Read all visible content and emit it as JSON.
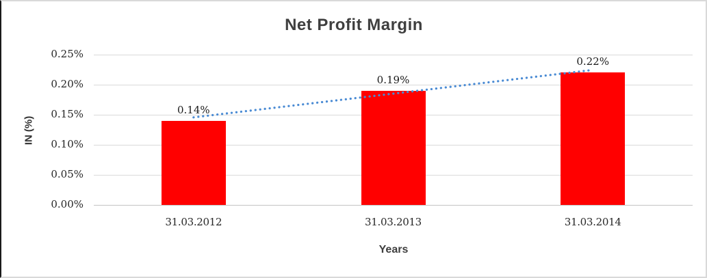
{
  "chart_data": {
    "type": "bar",
    "title": "Net Profit Margin",
    "xlabel": "Years",
    "ylabel": "IN (%)",
    "categories": [
      "31.03.2012",
      "31.03.2013",
      "31.03.2014"
    ],
    "values": [
      0.14,
      0.19,
      0.22
    ],
    "data_labels": [
      "0.14%",
      "0.19%",
      "0.22%"
    ],
    "y_ticks": [
      "0.00%",
      "0.05%",
      "0.10%",
      "0.15%",
      "0.20%",
      "0.25%"
    ],
    "ylim": [
      0,
      0.25
    ],
    "grid": true,
    "legend": "none",
    "bar_color": "#ff0000",
    "gridline_color": "#d9d9d9",
    "axis_line_color": "#c3c3c3",
    "text_color": "#262626",
    "title_color": "#3f3f3f",
    "trendline": {
      "style": "dotted",
      "color": "#4a8bd4",
      "spans": "first bar top to last bar top, rising"
    }
  }
}
